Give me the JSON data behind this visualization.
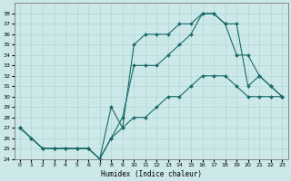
{
  "title": "",
  "xlabel": "Humidex (Indice chaleur)",
  "ylabel": "",
  "bg_color": "#cde8e8",
  "grid_color": "#b0d8d8",
  "line_color": "#1a6b6b",
  "ylim": [
    24,
    39
  ],
  "xlim": [
    -0.5,
    23.5
  ],
  "yticks": [
    24,
    25,
    26,
    27,
    28,
    29,
    30,
    31,
    32,
    33,
    34,
    35,
    36,
    37,
    38
  ],
  "xticks": [
    0,
    1,
    2,
    3,
    4,
    5,
    6,
    7,
    8,
    9,
    10,
    11,
    12,
    13,
    14,
    15,
    16,
    17,
    18,
    19,
    20,
    21,
    22,
    23
  ],
  "line1_x": [
    0,
    1,
    2,
    3,
    4,
    5,
    6,
    7,
    8,
    9,
    10,
    11,
    12,
    13,
    14,
    15,
    16,
    17,
    18,
    19,
    20,
    21,
    22,
    23
  ],
  "line1_y": [
    27,
    26,
    25,
    25,
    25,
    25,
    25,
    24,
    26,
    28,
    33,
    33,
    33,
    34,
    35,
    36,
    38,
    38,
    37,
    34,
    34,
    32,
    31,
    30
  ],
  "line2_x": [
    0,
    1,
    2,
    3,
    4,
    5,
    6,
    7,
    8,
    9,
    10,
    11,
    12,
    13,
    14,
    15,
    16,
    17,
    18,
    19,
    20,
    21,
    22,
    23
  ],
  "line2_y": [
    27,
    26,
    25,
    25,
    25,
    25,
    25,
    24,
    29,
    27,
    35,
    36,
    36,
    36,
    37,
    37,
    38,
    38,
    37,
    37,
    31,
    32,
    31,
    30
  ],
  "line3_x": [
    0,
    2,
    3,
    4,
    5,
    6,
    7,
    8,
    9,
    10,
    11,
    12,
    13,
    14,
    15,
    16,
    17,
    18,
    19,
    20,
    21,
    22,
    23
  ],
  "line3_y": [
    27,
    25,
    25,
    25,
    25,
    25,
    24,
    26,
    27,
    28,
    28,
    29,
    30,
    30,
    31,
    32,
    32,
    32,
    31,
    30,
    30,
    30,
    30
  ]
}
